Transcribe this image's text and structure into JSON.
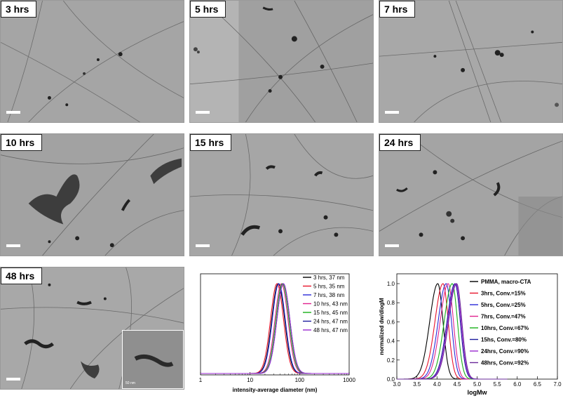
{
  "panels": [
    {
      "label": "3 hrs"
    },
    {
      "label": "5 hrs"
    },
    {
      "label": "7 hrs"
    },
    {
      "label": "10 hrs"
    },
    {
      "label": "15 hrs"
    },
    {
      "label": "24 hrs"
    },
    {
      "label": "48 hrs"
    }
  ],
  "inset": {
    "scale_label": "50 nm"
  },
  "chart_data": [
    {
      "type": "line",
      "xlabel": "intensity-average diameter (nm)",
      "ylabel": "",
      "xscale": "log",
      "xlim": [
        1,
        1000
      ],
      "xticks": [
        "1",
        "10",
        "100",
        "1000"
      ],
      "legend_position": "top-right",
      "series": [
        {
          "name": "3 hrs, 37 nm",
          "peak": 37,
          "color": "#000000"
        },
        {
          "name": "5 hrs, 35 nm",
          "peak": 35,
          "color": "#e8142c"
        },
        {
          "name": "7 hrs, 38 nm",
          "peak": 38,
          "color": "#2a2ad8"
        },
        {
          "name": "10 hrs, 43 nm",
          "peak": 43,
          "color": "#e0228e"
        },
        {
          "name": "15 hrs, 45 nm",
          "peak": 45,
          "color": "#18b018"
        },
        {
          "name": "24 hrs, 47 nm",
          "peak": 47,
          "color": "#1c1c9c"
        },
        {
          "name": "48 hrs, 47 nm",
          "peak": 47,
          "color": "#9a2ad0"
        }
      ]
    },
    {
      "type": "line",
      "xlabel": "logMw",
      "ylabel": "normalized dw/dlogM",
      "xlim": [
        3.0,
        7.0
      ],
      "ylim": [
        0.0,
        1.0
      ],
      "xticks": [
        "3.0",
        "3.5",
        "4.0",
        "4.5",
        "5.0",
        "5.5",
        "6.0",
        "6.5",
        "7.0"
      ],
      "yticks": [
        "0.0",
        "0.2",
        "0.4",
        "0.6",
        "0.8",
        "1.0"
      ],
      "legend_position": "top-right",
      "series": [
        {
          "name": "PMMA, macro-CTA",
          "peak": 4.02,
          "color": "#000000"
        },
        {
          "name": "3hrs, Conv.=15%",
          "peak": 4.15,
          "color": "#e8142c"
        },
        {
          "name": "5hrs, Conv.=25%",
          "peak": 4.23,
          "color": "#2a2ad8"
        },
        {
          "name": "7hrs, Conv.=47%",
          "peak": 4.28,
          "color": "#e0228e"
        },
        {
          "name": "10hrs, Conv.=67%",
          "peak": 4.38,
          "color": "#18b018"
        },
        {
          "name": "15hs, Conv.=80%",
          "peak": 4.45,
          "color": "#1c1c9c"
        },
        {
          "name": "24hrs, Conv.=90%",
          "peak": 4.47,
          "color": "#9a2ad0"
        },
        {
          "name": "48hrs, Conv.=92%",
          "peak": 4.49,
          "color": "#6a2a9a"
        }
      ]
    }
  ]
}
